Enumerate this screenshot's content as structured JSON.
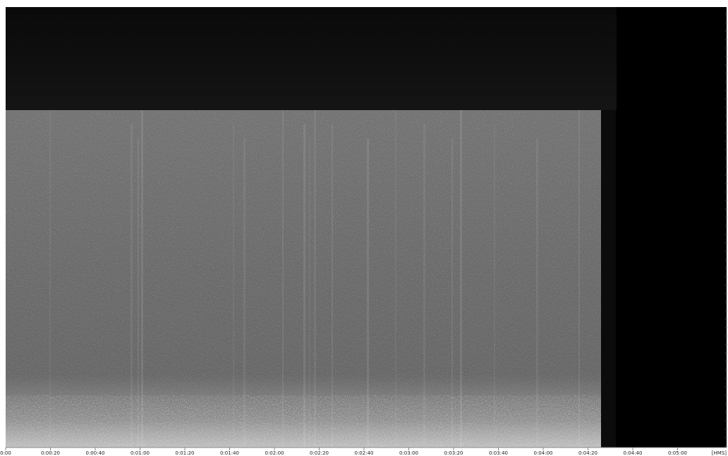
{
  "time_axis": {
    "ticks": [
      "0:00",
      "0:00:20",
      "0:00:40",
      "0:01:00",
      "0:01:20",
      "0:01:40",
      "0:02:00",
      "0:02:20",
      "0:02:40",
      "0:03:00",
      "0:03:20",
      "0:03:40",
      "0:04:00",
      "0:04:20",
      "0:04:40",
      "0:05:00"
    ],
    "unit": "[HMS]"
  }
}
